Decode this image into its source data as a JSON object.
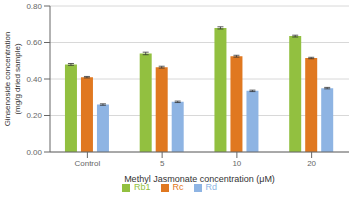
{
  "chart_data": {
    "type": "bar",
    "categories": [
      "Control",
      "5",
      "10",
      "20"
    ],
    "series": [
      {
        "name": "Rb1",
        "color": "#92c040",
        "values": [
          0.48,
          0.54,
          0.68,
          0.635
        ],
        "errors": [
          0.005,
          0.007,
          0.006,
          0.005
        ]
      },
      {
        "name": "Rc",
        "color": "#e07820",
        "values": [
          0.41,
          0.465,
          0.525,
          0.515
        ],
        "errors": [
          0.004,
          0.005,
          0.005,
          0.004
        ]
      },
      {
        "name": "Rd",
        "color": "#8eb4e3",
        "values": [
          0.26,
          0.275,
          0.335,
          0.35
        ],
        "errors": [
          0.004,
          0.004,
          0.004,
          0.004
        ]
      }
    ],
    "xlabel": "Methyl Jasmonate concentration (μM)",
    "ylabel": "Ginsenoside concentration\n(mg/g dried sample)",
    "ylim": [
      0.0,
      0.8
    ],
    "yticks": [
      {
        "value": 0.0,
        "label": "0.00"
      },
      {
        "value": 0.2,
        "label": "0.20"
      },
      {
        "value": 0.4,
        "label": "0.40"
      },
      {
        "value": 0.6,
        "label": "0.60"
      },
      {
        "value": 0.8,
        "label": "0.80"
      }
    ],
    "grid": true,
    "legend": "bottom"
  }
}
